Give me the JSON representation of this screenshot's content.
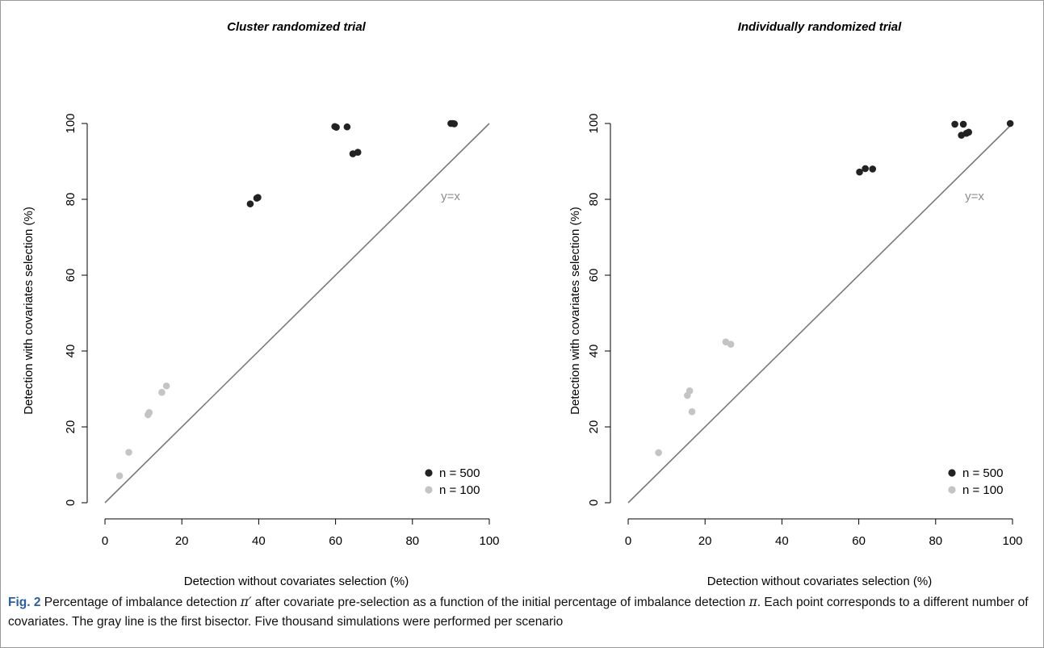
{
  "caption": {
    "label": "Fig. 2",
    "part1": " Percentage of imbalance detection ",
    "sym1": "π′",
    "part2": " after covariate pre-selection as a function of the initial percentage of imbalance detection ",
    "sym2": "π",
    "part3": ". Each point corresponds to a different number of covariates. The gray line is the first bisector. Five thousand simulations were performed per scenario"
  },
  "colors": {
    "n500": "#222222",
    "n100": "#c4c4c4",
    "line": "#7a7a7a"
  },
  "chart_data": [
    {
      "type": "scatter",
      "title": "Cluster randomized trial",
      "xlabel": "Detection without covariates selection (%)",
      "ylabel": "Detection with covariates selection (%)",
      "xlim": [
        0,
        100
      ],
      "ylim": [
        0,
        100
      ],
      "xticks": [
        0,
        20,
        40,
        60,
        80,
        100
      ],
      "yticks": [
        0,
        20,
        40,
        60,
        80,
        100
      ],
      "annotation": "y=x",
      "legend_position": "bottom-right",
      "series": [
        {
          "name": "n = 500",
          "x": [
            37.8,
            39.5,
            39.8,
            59.8,
            60.2,
            63.0,
            64.5,
            65.8,
            90.0,
            90.5,
            90.9
          ],
          "y": [
            78.8,
            80.3,
            80.5,
            99.2,
            99.0,
            99.1,
            92.0,
            92.4,
            100,
            100,
            99.9
          ]
        },
        {
          "name": "n = 100",
          "x": [
            3.8,
            6.2,
            11.2,
            11.5,
            14.8,
            16.0
          ],
          "y": [
            7.1,
            13.3,
            23.2,
            23.8,
            29.1,
            30.8
          ]
        }
      ]
    },
    {
      "type": "scatter",
      "title": "Individually randomized trial",
      "xlabel": "Detection without covariates selection (%)",
      "ylabel": "Detection with covariates selection (%)",
      "xlim": [
        0,
        100
      ],
      "ylim": [
        0,
        100
      ],
      "xticks": [
        0,
        20,
        40,
        60,
        80,
        100
      ],
      "yticks": [
        0,
        20,
        40,
        60,
        80,
        100
      ],
      "annotation": "y=x",
      "legend_position": "bottom-right",
      "series": [
        {
          "name": "n = 500",
          "x": [
            60.2,
            61.7,
            63.6,
            85.0,
            86.7,
            87.2,
            88.0,
            88.6,
            99.4
          ],
          "y": [
            87.2,
            88.1,
            88.0,
            99.8,
            96.9,
            99.8,
            97.4,
            97.7,
            100
          ]
        },
        {
          "name": "n = 100",
          "x": [
            7.9,
            15.4,
            16.0,
            16.6,
            25.4,
            26.7
          ],
          "y": [
            13.2,
            28.3,
            29.5,
            24.0,
            42.4,
            41.8
          ]
        }
      ]
    }
  ]
}
